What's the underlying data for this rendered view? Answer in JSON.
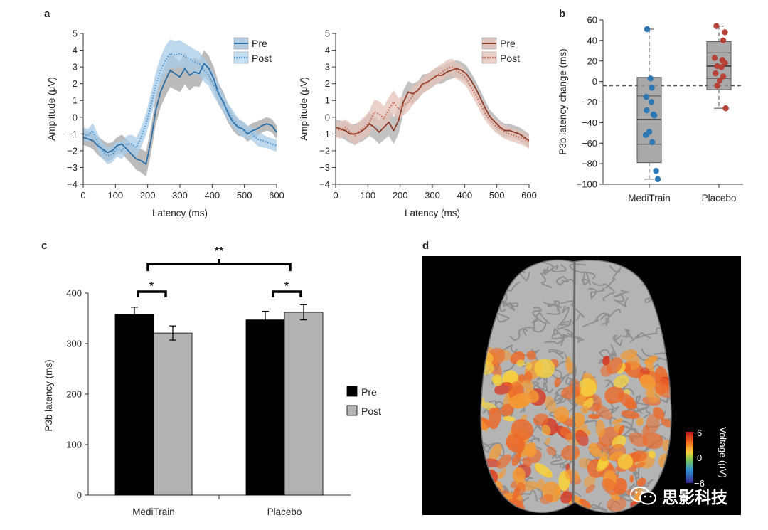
{
  "panels": {
    "a": "a",
    "b": "b",
    "c": "c",
    "d": "d"
  },
  "chart_data": [
    {
      "id": "a-left",
      "type": "line",
      "title": "",
      "xlabel": "Latency (ms)",
      "ylabel": "Amplitude (μV)",
      "xlim": [
        0,
        600
      ],
      "ylim": [
        -4,
        5
      ],
      "xticks": [
        0,
        100,
        200,
        300,
        400,
        500,
        600
      ],
      "yticks": [
        -4,
        -3,
        -2,
        -1,
        0,
        1,
        2,
        3,
        4,
        5
      ],
      "legend_position": "top-right",
      "series": [
        {
          "name": "Pre",
          "color": "#2a6fa8",
          "style": "solid",
          "x": [
            0,
            15,
            30,
            45,
            60,
            75,
            90,
            105,
            120,
            135,
            150,
            165,
            180,
            195,
            210,
            225,
            240,
            255,
            270,
            285,
            300,
            315,
            330,
            345,
            360,
            375,
            390,
            405,
            420,
            435,
            450,
            465,
            480,
            495,
            510,
            525,
            540,
            555,
            570,
            585,
            600
          ],
          "y": [
            -1.2,
            -1.3,
            -1.4,
            -1.7,
            -1.9,
            -2.1,
            -2.0,
            -1.7,
            -1.6,
            -1.9,
            -2.2,
            -2.5,
            -2.6,
            -2.8,
            -1.4,
            0.4,
            1.5,
            2.2,
            2.8,
            2.6,
            2.4,
            2.9,
            2.5,
            2.7,
            2.6,
            3.2,
            2.9,
            2.3,
            1.4,
            0.9,
            0.2,
            -0.3,
            -0.6,
            -0.7,
            -1.0,
            -0.8,
            -0.7,
            -0.5,
            -0.4,
            -0.5,
            -0.9
          ],
          "band": [
            0.45,
            0.45,
            0.5,
            0.55,
            0.55,
            0.55,
            0.5,
            0.5,
            0.55,
            0.6,
            0.6,
            0.65,
            0.7,
            0.75,
            0.8,
            0.85,
            0.9,
            0.95,
            1.0,
            0.95,
            0.9,
            0.95,
            0.9,
            0.85,
            0.8,
            0.8,
            0.75,
            0.7,
            0.65,
            0.6,
            0.55,
            0.5,
            0.5,
            0.45,
            0.45,
            0.45,
            0.45,
            0.4,
            0.4,
            0.4,
            0.4
          ]
        },
        {
          "name": "Post",
          "color": "#4f9ad4",
          "style": "dotted",
          "x": [
            0,
            15,
            30,
            45,
            60,
            75,
            90,
            105,
            120,
            135,
            150,
            165,
            180,
            195,
            210,
            225,
            240,
            255,
            270,
            285,
            300,
            315,
            330,
            345,
            360,
            375,
            390,
            405,
            420,
            435,
            450,
            465,
            480,
            495,
            510,
            525,
            540,
            555,
            570,
            585,
            600
          ],
          "y": [
            -1.0,
            -1.1,
            -0.8,
            -1.5,
            -2.0,
            -2.3,
            -2.2,
            -1.9,
            -2.0,
            -1.6,
            -1.6,
            -1.8,
            -1.2,
            -0.4,
            0.7,
            1.9,
            2.8,
            3.4,
            3.8,
            3.7,
            3.8,
            3.6,
            3.5,
            3.3,
            3.2,
            2.8,
            2.5,
            1.9,
            1.4,
            0.8,
            0.3,
            -0.1,
            -0.5,
            -0.7,
            -0.9,
            -1.0,
            -1.3,
            -1.4,
            -1.5,
            -1.6,
            -1.7
          ],
          "band": [
            0.4,
            0.4,
            0.45,
            0.5,
            0.5,
            0.5,
            0.5,
            0.45,
            0.5,
            0.5,
            0.55,
            0.6,
            0.6,
            0.65,
            0.7,
            0.75,
            0.8,
            0.85,
            0.85,
            0.85,
            0.8,
            0.8,
            0.75,
            0.75,
            0.7,
            0.7,
            0.65,
            0.65,
            0.6,
            0.55,
            0.5,
            0.5,
            0.45,
            0.45,
            0.4,
            0.4,
            0.4,
            0.4,
            0.35,
            0.35,
            0.35
          ]
        }
      ]
    },
    {
      "id": "a-right",
      "type": "line",
      "title": "",
      "xlabel": "Latency (ms)",
      "ylabel": "Amplitude (μV)",
      "xlim": [
        0,
        600
      ],
      "ylim": [
        -4,
        5
      ],
      "xticks": [
        0,
        100,
        200,
        300,
        400,
        500,
        600
      ],
      "yticks": [
        -4,
        -3,
        -2,
        -1,
        0,
        1,
        2,
        3,
        4,
        5
      ],
      "legend_position": "top-right",
      "series": [
        {
          "name": "Pre",
          "color": "#8e3b2a",
          "style": "solid",
          "x": [
            0,
            15,
            30,
            45,
            60,
            75,
            90,
            105,
            120,
            135,
            150,
            165,
            180,
            195,
            210,
            225,
            240,
            255,
            270,
            285,
            300,
            315,
            330,
            345,
            360,
            375,
            390,
            405,
            420,
            435,
            450,
            465,
            480,
            495,
            510,
            525,
            540,
            555,
            570,
            585,
            600
          ],
          "y": [
            -0.6,
            -0.7,
            -0.8,
            -1.0,
            -1.0,
            -0.9,
            -0.7,
            -0.4,
            -0.6,
            -0.9,
            -0.6,
            -0.3,
            -0.8,
            -0.2,
            0.9,
            1.5,
            1.4,
            1.6,
            2.0,
            2.1,
            2.3,
            2.5,
            2.5,
            2.7,
            2.8,
            2.9,
            2.8,
            2.6,
            2.2,
            1.7,
            1.1,
            0.5,
            0.0,
            -0.3,
            -0.6,
            -0.8,
            -0.8,
            -0.9,
            -1.0,
            -1.2,
            -1.4
          ],
          "band": [
            0.5,
            0.5,
            0.55,
            0.55,
            0.6,
            0.6,
            0.65,
            0.7,
            0.7,
            0.7,
            0.75,
            0.8,
            0.8,
            0.8,
            0.7,
            0.65,
            0.6,
            0.55,
            0.55,
            0.5,
            0.5,
            0.5,
            0.5,
            0.5,
            0.5,
            0.5,
            0.5,
            0.5,
            0.45,
            0.45,
            0.45,
            0.45,
            0.4,
            0.4,
            0.4,
            0.4,
            0.4,
            0.4,
            0.4,
            0.4,
            0.4
          ]
        },
        {
          "name": "Post",
          "color": "#c96a55",
          "style": "dotted",
          "x": [
            0,
            15,
            30,
            45,
            60,
            75,
            90,
            105,
            120,
            135,
            150,
            165,
            180,
            195,
            210,
            225,
            240,
            255,
            270,
            285,
            300,
            315,
            330,
            345,
            360,
            375,
            390,
            405,
            420,
            435,
            450,
            465,
            480,
            495,
            510,
            525,
            540,
            555,
            570,
            585,
            600
          ],
          "y": [
            -0.7,
            -0.8,
            -0.6,
            -0.9,
            -1.1,
            -0.8,
            -0.6,
            -0.3,
            0.3,
            0.2,
            -0.1,
            0.5,
            0.9,
            0.5,
            0.7,
            0.9,
            1.3,
            1.6,
            1.9,
            2.1,
            2.3,
            2.5,
            2.7,
            2.9,
            3.0,
            2.8,
            2.6,
            2.3,
            1.8,
            1.3,
            0.7,
            0.2,
            -0.2,
            -0.5,
            -0.7,
            -0.9,
            -1.0,
            -1.1,
            -1.2,
            -1.3,
            -1.5
          ],
          "band": [
            0.5,
            0.5,
            0.5,
            0.55,
            0.6,
            0.6,
            0.65,
            0.7,
            0.75,
            0.75,
            0.75,
            0.7,
            0.7,
            0.65,
            0.6,
            0.55,
            0.55,
            0.5,
            0.5,
            0.5,
            0.5,
            0.5,
            0.5,
            0.5,
            0.5,
            0.5,
            0.5,
            0.45,
            0.45,
            0.45,
            0.45,
            0.4,
            0.4,
            0.4,
            0.4,
            0.4,
            0.4,
            0.4,
            0.4,
            0.4,
            0.4
          ]
        }
      ]
    },
    {
      "id": "b",
      "type": "scatter",
      "title": "",
      "xlabel": "",
      "ylabel": "P3b latency change (ms)",
      "ylim": [
        -100,
        60
      ],
      "yticks": [
        -100,
        -80,
        -60,
        -40,
        -20,
        0,
        20,
        40,
        60
      ],
      "categories": [
        "MediTrain",
        "Placebo"
      ],
      "reference_line": -4,
      "boxes": [
        {
          "category": "MediTrain",
          "whisker_low": -95,
          "q1": -79,
          "median": -37,
          "q3": 4,
          "whisker_high": 51,
          "inner_lines": [
            -14,
            -61
          ]
        },
        {
          "category": "Placebo",
          "whisker_low": -26,
          "q1": -8,
          "median": 15,
          "q3": 39,
          "whisker_high": 54,
          "inner_lines": [
            28,
            3
          ]
        }
      ],
      "series": [
        {
          "name": "MediTrain",
          "color": "#2e78b4",
          "points": [
            [
              -0.05,
              51
            ],
            [
              0.03,
              3
            ],
            [
              0.06,
              -6
            ],
            [
              -0.07,
              -15
            ],
            [
              0.05,
              -20
            ],
            [
              -0.06,
              -28
            ],
            [
              0.1,
              -32
            ],
            [
              0.12,
              -33
            ],
            [
              0.0,
              -49
            ],
            [
              -0.08,
              -52
            ],
            [
              0.07,
              -59
            ],
            [
              0.16,
              -87
            ],
            [
              0.2,
              -95
            ]
          ]
        },
        {
          "name": "Placebo",
          "color": "#b5433a",
          "points": [
            [
              -0.06,
              54
            ],
            [
              0.14,
              48
            ],
            [
              0.1,
              40
            ],
            [
              -0.1,
              23
            ],
            [
              0.08,
              21
            ],
            [
              0.14,
              18
            ],
            [
              -0.04,
              15
            ],
            [
              0.06,
              14
            ],
            [
              -0.08,
              8
            ],
            [
              0.1,
              5
            ],
            [
              0.02,
              1
            ],
            [
              -0.04,
              -4
            ],
            [
              0.16,
              -26
            ]
          ]
        }
      ]
    },
    {
      "id": "c",
      "type": "bar",
      "title": "",
      "xlabel": "",
      "ylabel": "P3b latency (ms)",
      "ylim": [
        0,
        400
      ],
      "yticks": [
        0,
        100,
        200,
        300,
        400
      ],
      "categories": [
        "MediTrain",
        "Placebo"
      ],
      "legend_position": "right",
      "series": [
        {
          "name": "Pre",
          "color": "#000000",
          "values": [
            358,
            347
          ],
          "errors": [
            14,
            17
          ]
        },
        {
          "name": "Post",
          "color": "#b3b3b3",
          "values": [
            321,
            362
          ],
          "errors": [
            14,
            15
          ]
        }
      ],
      "significance": [
        {
          "label": "*",
          "between": "MediTrain Pre vs Post"
        },
        {
          "label": "*",
          "between": "Placebo Pre vs Post"
        },
        {
          "label": "**",
          "between": "MediTrain vs Placebo"
        }
      ]
    }
  ],
  "brain": {
    "colorbar_label": "Voltage (μV)",
    "colorbar_ticks": [
      "6",
      "0",
      "−6"
    ]
  },
  "watermark": {
    "text": "思影科技"
  }
}
